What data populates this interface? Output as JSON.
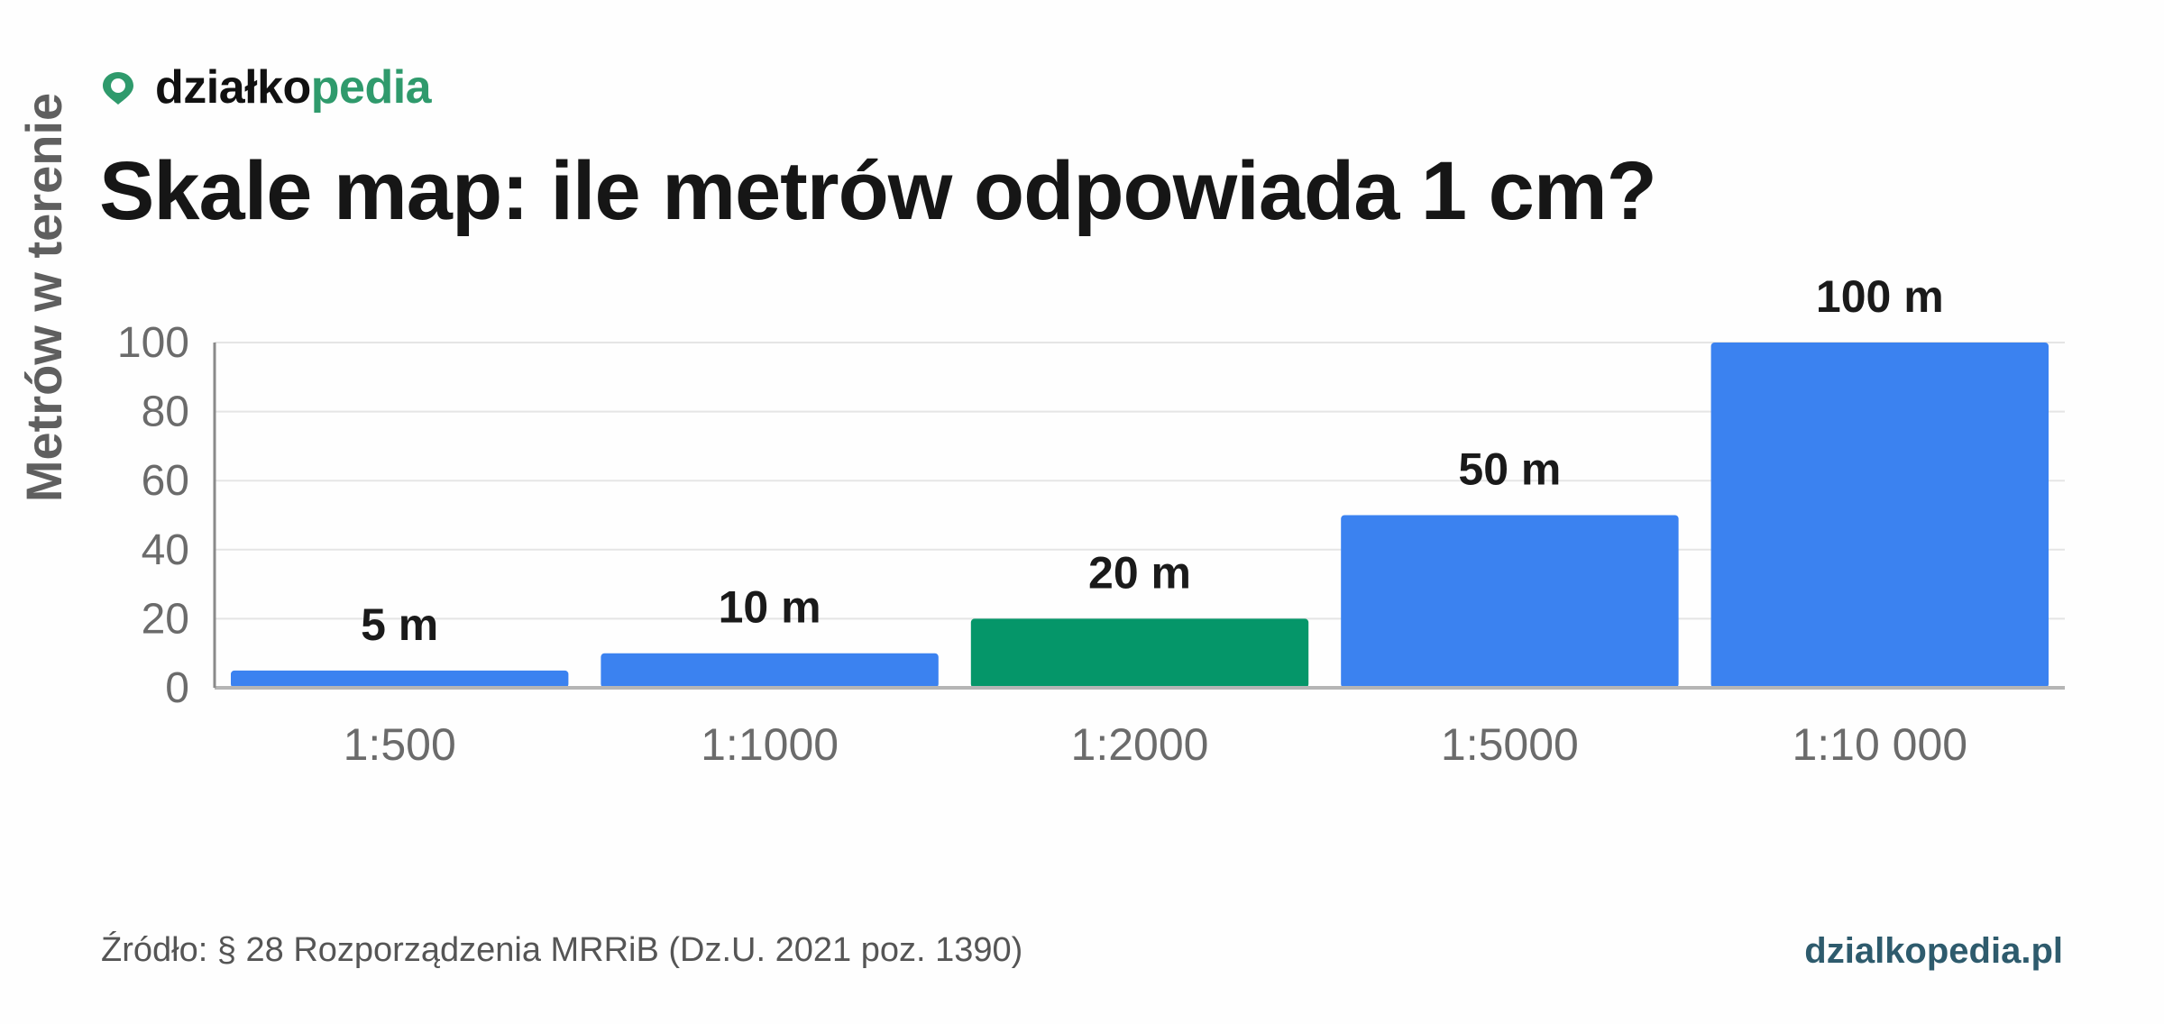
{
  "brand": {
    "name_prefix": "działko",
    "name_accent": "pedia",
    "icon": "location-pin-icon"
  },
  "footer": {
    "source": "Źródło: § 28 Rozporządzenia MRRiB (Dz.U. 2021 poz. 1390)",
    "site": "dzialkopedia.pl"
  },
  "colors": {
    "bar_default": "#3b82f0",
    "bar_highlight": "#059669",
    "brand_accent": "#2f9a6c",
    "site_link": "#2e5b6d",
    "grid": "#e5e5e5",
    "axis": "#b5b5b5",
    "tick_text": "#6b6b6b",
    "label_text": "#1a1a1a"
  },
  "chart_data": {
    "type": "bar",
    "title": "Skale map: ile metrów odpowiada 1 cm?",
    "xlabel": "",
    "ylabel": "Metrów w terenie",
    "categories": [
      "1:500",
      "1:1000",
      "1:2000",
      "1:5000",
      "1:10 000"
    ],
    "values": [
      5,
      10,
      20,
      50,
      100
    ],
    "data_labels": [
      "5 m",
      "10 m",
      "20 m",
      "50 m",
      "100 m"
    ],
    "highlight_category": "1:2000",
    "ylim": [
      0,
      100
    ],
    "yticks": [
      0,
      20,
      40,
      60,
      80,
      100
    ],
    "grid": true,
    "legend": "none"
  }
}
